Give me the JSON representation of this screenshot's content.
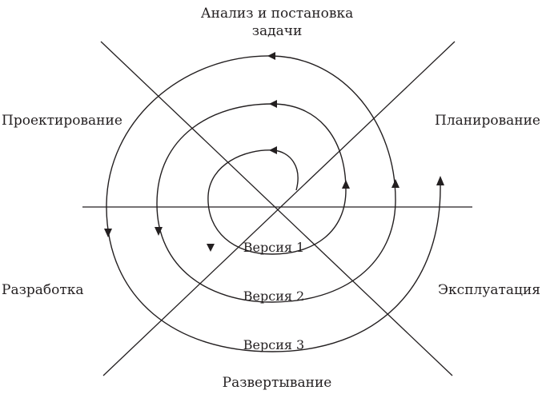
{
  "diagram": {
    "labels": {
      "analysis_line1": "Анализ и постановка",
      "analysis_line2": "задачи",
      "design": "Проектирование",
      "planning": "Планирование",
      "development": "Разработка",
      "operation": "Эксплуатация",
      "deployment": "Развертывание"
    },
    "versions": [
      "Версия 1",
      "Версия 2",
      "Версия 3"
    ]
  }
}
